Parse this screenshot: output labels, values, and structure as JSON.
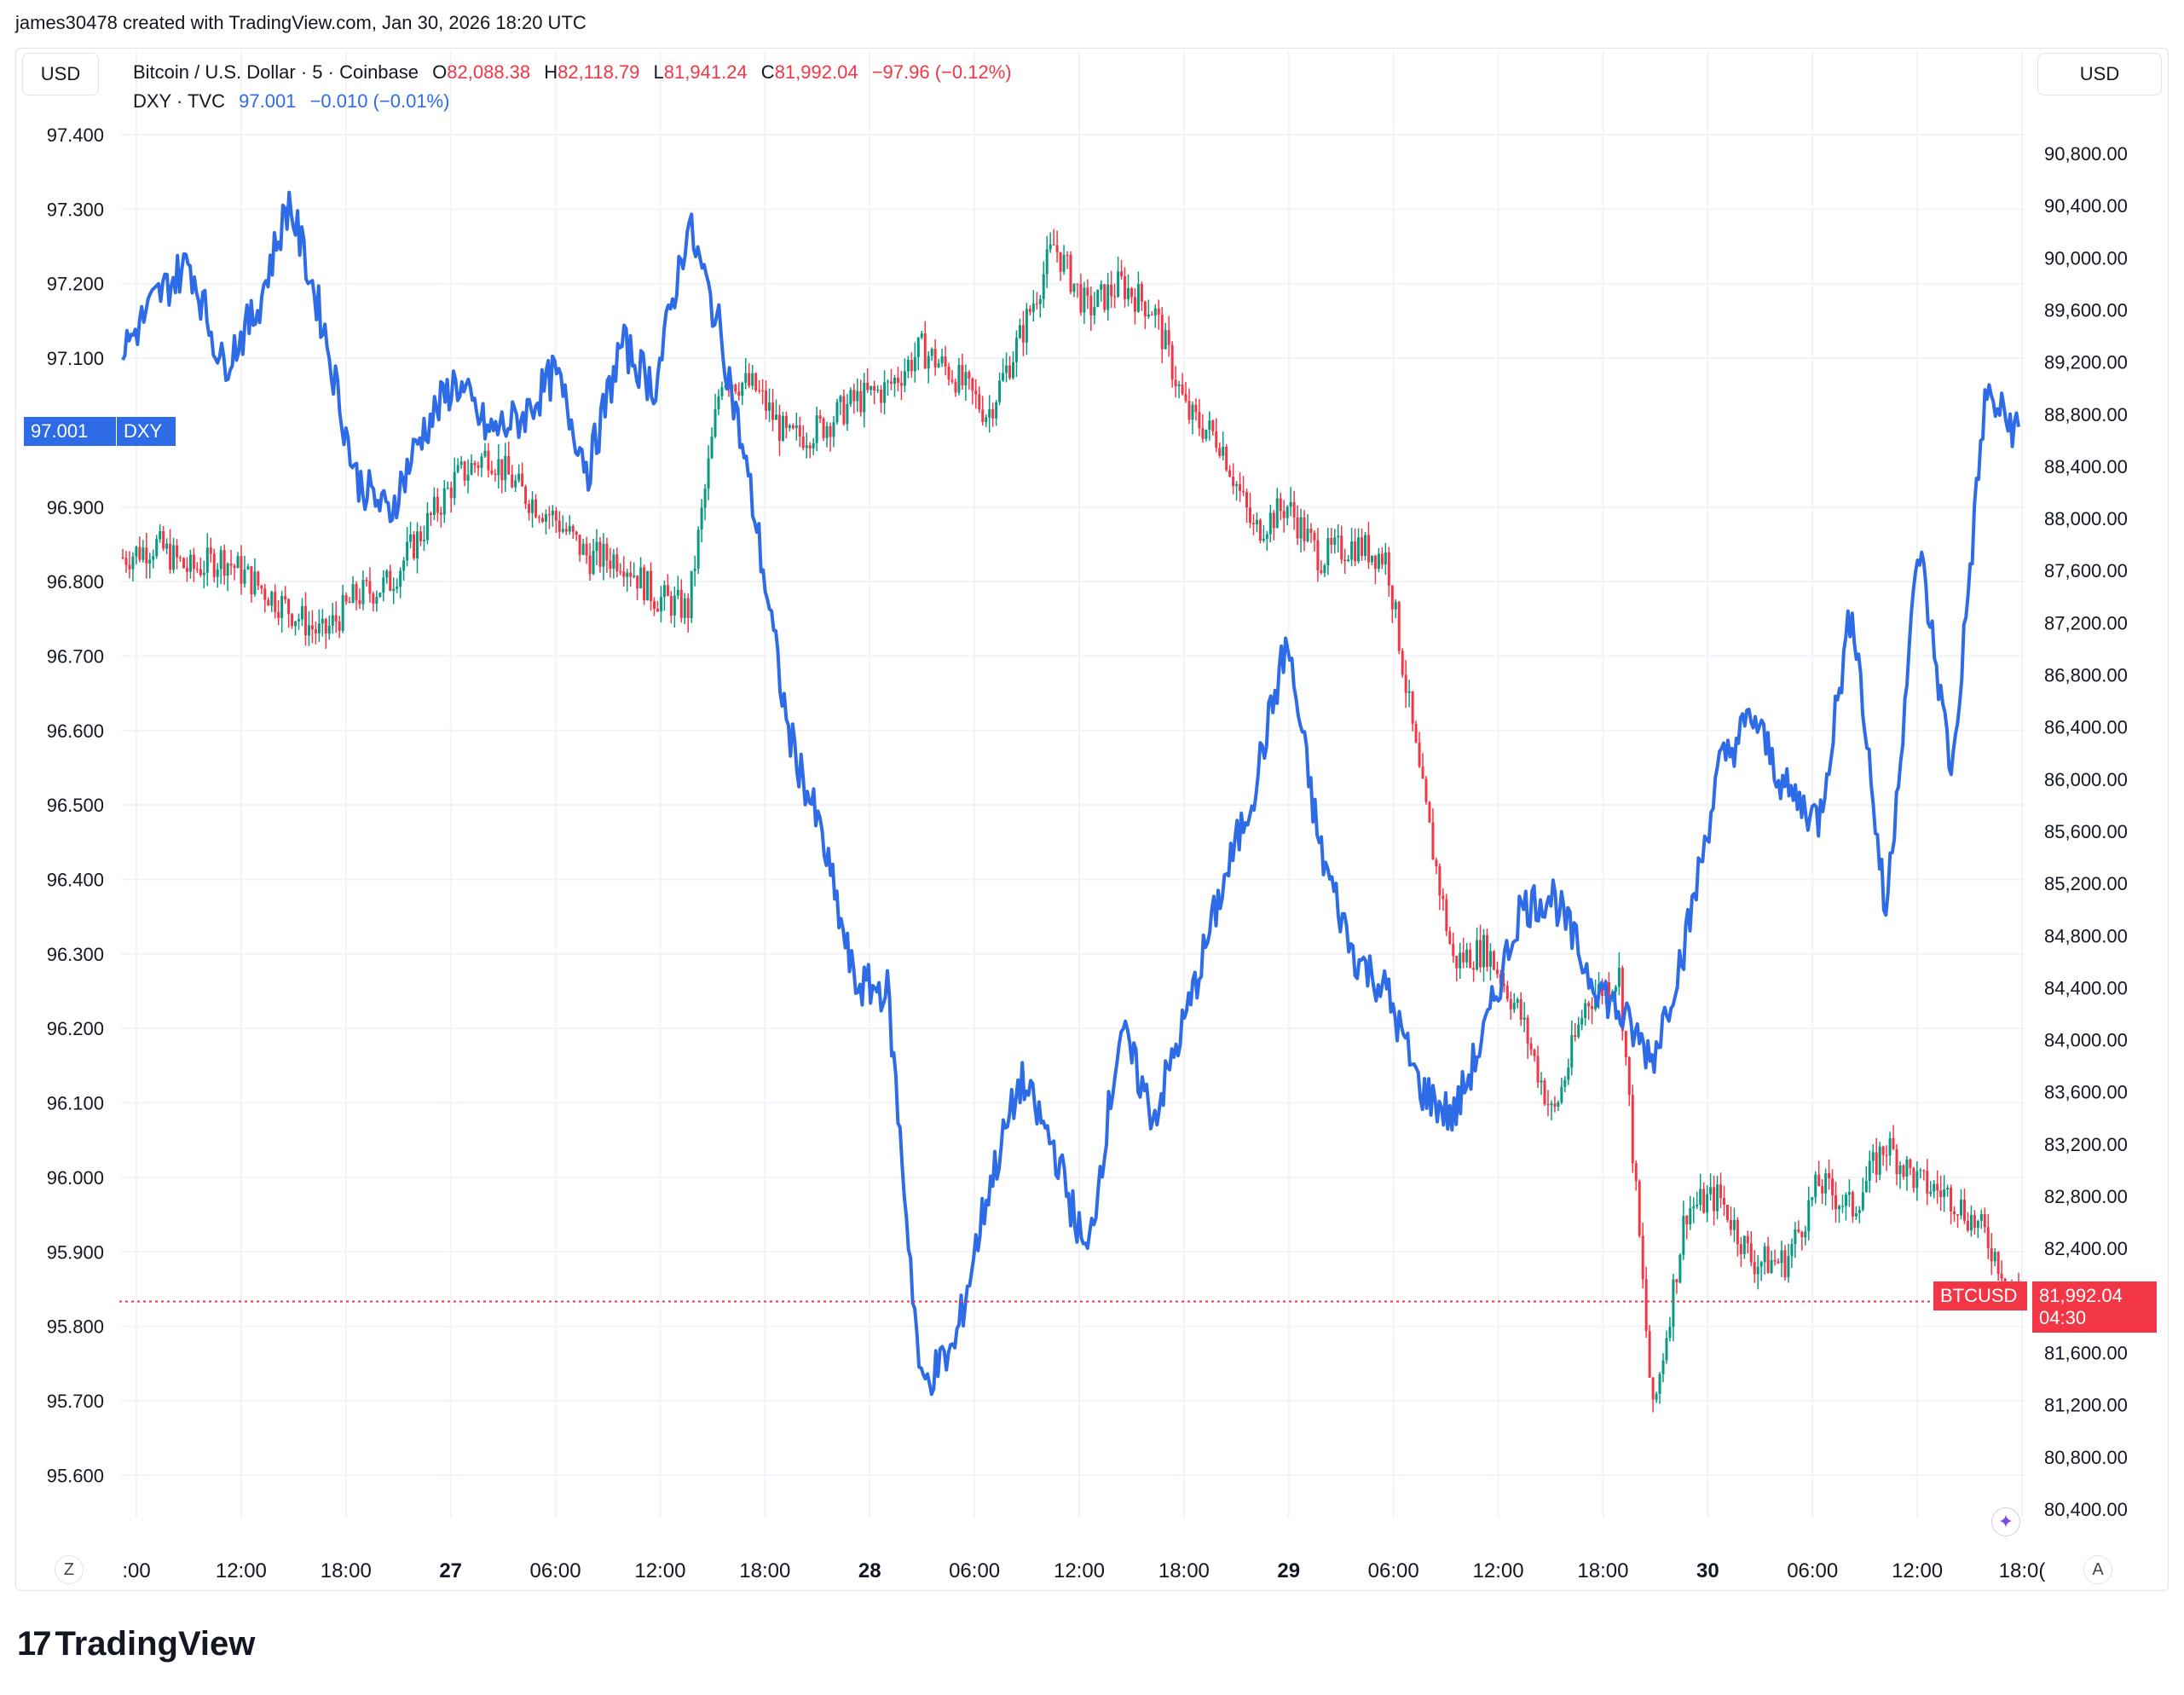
{
  "header": {
    "credit": "james30478 created with TradingView.com, Jan 30, 2026 18:20 UTC"
  },
  "currency_left": "USD",
  "currency_right": "USD",
  "legend": {
    "btc": {
      "symbol": "Bitcoin / U.S. Dollar · 5 · Coinbase",
      "o_label": "O",
      "o": "82,088.38",
      "h_label": "H",
      "h": "82,118.79",
      "l_label": "L",
      "l": "81,941.24",
      "c_label": "C",
      "c": "81,992.04",
      "change": "−97.96 (−0.12%)"
    },
    "dxy": {
      "symbol": "DXY · TVC",
      "value": "97.001",
      "change": "−0.010 (−0.01%)"
    }
  },
  "tags": {
    "dxy_value": "97.001",
    "dxy_name": "DXY",
    "btc_name": "BTCUSD",
    "btc_value": "81,992.04",
    "btc_countdown": "04:30"
  },
  "controls": {
    "left": "Z",
    "right": "A"
  },
  "logo": {
    "mark": "17",
    "text": "TradingView"
  },
  "colors": {
    "dxy": "#2e6be6",
    "btc_up": "#089981",
    "btc_down": "#f23645",
    "grid": "#f0f3fa"
  },
  "chart_data": {
    "type": "line",
    "x_ticks": [
      ":00",
      "12:00",
      "18:00",
      "27",
      "06:00",
      "12:00",
      "18:00",
      "28",
      "06:00",
      "12:00",
      "18:00",
      "29",
      "06:00",
      "12:00",
      "18:00",
      "30",
      "06:00",
      "12:00",
      "18:0("
    ],
    "bold_x_ticks": [
      "27",
      "28",
      "29",
      "30"
    ],
    "left_axis": {
      "name": "DXY",
      "ticks": [
        "97.400",
        "97.300",
        "97.200",
        "97.100",
        "96.900",
        "96.800",
        "96.700",
        "96.600",
        "96.500",
        "96.400",
        "96.300",
        "96.200",
        "96.100",
        "96.000",
        "95.900",
        "95.800",
        "95.700",
        "95.600"
      ],
      "ylim": [
        95.55,
        97.45
      ]
    },
    "right_axis": {
      "name": "BTCUSD",
      "ticks": [
        "90,800.00",
        "90,400.00",
        "90,000.00",
        "89,600.00",
        "89,200.00",
        "88,800.00",
        "88,400.00",
        "88,000.00",
        "87,600.00",
        "87,200.00",
        "86,800.00",
        "86,400.00",
        "86,000.00",
        "85,600.00",
        "85,200.00",
        "84,800.00",
        "84,400.00",
        "84,000.00",
        "83,600.00",
        "83,200.00",
        "82,800.00",
        "82,400.00",
        "81,600.00",
        "81,200.00",
        "80,800.00",
        "80,400.00"
      ],
      "ylim": [
        80200,
        91300
      ]
    },
    "series": [
      {
        "name": "DXY",
        "axis": "left",
        "x_hours": [
          0,
          2,
          4,
          6,
          8,
          10,
          12,
          14,
          16,
          18,
          20,
          22,
          24,
          26,
          28,
          30,
          32,
          34,
          36,
          38,
          40,
          42,
          44,
          46,
          48,
          50,
          52,
          54,
          56,
          58,
          60,
          62,
          64,
          66,
          68,
          70,
          72,
          74,
          76,
          78,
          80,
          82,
          84,
          86,
          88,
          90,
          92,
          94,
          96,
          98,
          100,
          102,
          104,
          106,
          108,
          110,
          112,
          114
        ],
        "values": [
          97.11,
          97.18,
          97.23,
          97.09,
          97.16,
          97.31,
          97.15,
          96.94,
          96.89,
          97.0,
          97.07,
          97.0,
          97.02,
          97.08,
          96.95,
          97.12,
          97.06,
          97.28,
          97.13,
          96.89,
          96.6,
          96.46,
          96.26,
          96.25,
          95.72,
          95.77,
          95.98,
          96.13,
          96.04,
          95.89,
          96.2,
          96.08,
          96.22,
          96.38,
          96.52,
          96.72,
          96.44,
          96.3,
          96.25,
          96.12,
          96.08,
          96.2,
          96.36,
          96.38,
          96.28,
          96.22,
          96.16,
          96.32,
          96.55,
          96.62,
          96.52,
          96.48,
          96.77,
          96.35,
          96.85,
          96.54,
          97.05,
          97.0
        ]
      },
      {
        "name": "BTCUSD",
        "axis": "right",
        "x_hours": [
          0,
          2,
          4,
          6,
          8,
          10,
          12,
          14,
          16,
          18,
          20,
          22,
          24,
          26,
          28,
          30,
          32,
          34,
          36,
          38,
          40,
          42,
          44,
          46,
          48,
          50,
          52,
          54,
          56,
          58,
          60,
          62,
          64,
          66,
          68,
          70,
          72,
          74,
          76,
          78,
          80,
          82,
          84,
          86,
          88,
          90,
          92,
          94,
          96,
          98,
          100,
          102,
          104,
          106,
          108,
          110,
          112,
          114
        ],
        "values": [
          87700,
          87800,
          87600,
          87700,
          87500,
          87300,
          87100,
          87400,
          87500,
          87900,
          88300,
          88500,
          88200,
          88000,
          87700,
          87700,
          87400,
          87300,
          89100,
          89000,
          88600,
          88700,
          88900,
          89000,
          89300,
          89100,
          88800,
          89400,
          90100,
          89600,
          89800,
          89600,
          88800,
          88600,
          87900,
          88100,
          87700,
          87800,
          87700,
          86000,
          84600,
          84700,
          84200,
          83400,
          84300,
          84500,
          81100,
          82700,
          82800,
          82300,
          82300,
          82900,
          82700,
          83200,
          82900,
          82800,
          82500,
          81992
        ]
      }
    ]
  }
}
